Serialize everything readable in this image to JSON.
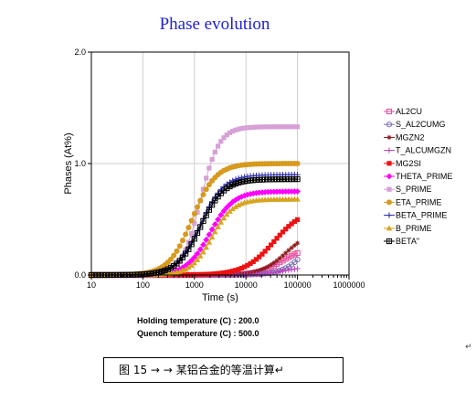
{
  "chart_data": {
    "type": "line",
    "title": "Phase evolution",
    "xlabel": "Time (s)",
    "ylabel": "Phases (At%)",
    "x_scale": "log",
    "xlim": [
      10,
      1000000
    ],
    "ylim": [
      0,
      2
    ],
    "x_tick_labels": [
      "10",
      "100",
      "1000",
      "10000",
      "100000",
      "1000000"
    ],
    "y_tick_labels": [
      "0.0",
      "1.0",
      "2.0"
    ],
    "grid": true,
    "legend": "right",
    "series": [
      {
        "name": "AL2CU",
        "color": "#e8449a",
        "marker": "square-open",
        "start": 10,
        "final": 0.25,
        "k": 1.9,
        "t0": 50000
      },
      {
        "name": "S_AL2CUMG",
        "color": "#7a6fb0",
        "marker": "circle-open",
        "start": 10,
        "final": 0.62,
        "k": 1.8,
        "t0": 200000
      },
      {
        "name": "MGZN2",
        "color": "#8b1a1a",
        "marker": "asterisk",
        "start": 10,
        "final": 0.4,
        "k": 1.8,
        "t0": 60000
      },
      {
        "name": "T_ALCUMGZN",
        "color": "#c040c0",
        "marker": "plus",
        "start": 10,
        "final": 0.08,
        "k": 1.8,
        "t0": 60000
      },
      {
        "name": "MG2SI",
        "color": "#ee1111",
        "marker": "square-filled",
        "start": 10,
        "final": 0.6,
        "k": 1.5,
        "t0": 35000
      },
      {
        "name": "THETA_PRIME",
        "color": "#ff00ff",
        "marker": "diamond-filled",
        "start": 10,
        "final": 0.75,
        "k": 1.9,
        "t0": 2000
      },
      {
        "name": "S_PRIME",
        "color": "#d7a0d7",
        "marker": "square-filled",
        "start": 10,
        "final": 1.33,
        "k": 2.4,
        "t0": 1300
      },
      {
        "name": "ETA_PRIME",
        "color": "#d79a1e",
        "marker": "circle-filled",
        "start": 10,
        "final": 1.0,
        "k": 1.9,
        "t0": 900
      },
      {
        "name": "BETA_PRIME",
        "color": "#2a2ab0",
        "marker": "plus",
        "start": 10,
        "final": 0.9,
        "k": 1.9,
        "t0": 1300
      },
      {
        "name": "B_PRIME",
        "color": "#d7a41e",
        "marker": "triangle-filled",
        "start": 10,
        "final": 0.68,
        "k": 2.1,
        "t0": 2200
      },
      {
        "name": "BETA\"",
        "color": "#000000",
        "marker": "square-plus",
        "start": 10,
        "final": 0.86,
        "k": 1.9,
        "t0": 1300
      }
    ]
  },
  "conditions": {
    "holding": "Holding temperature (C) : 200.0",
    "quench": "Quench temperature (C) : 500.0"
  },
  "return_mark": "↵",
  "caption": {
    "figure_label": "图 15",
    "arrows": "→  →",
    "text": "某铝合金的等温计算",
    "end_mark": "↵"
  }
}
